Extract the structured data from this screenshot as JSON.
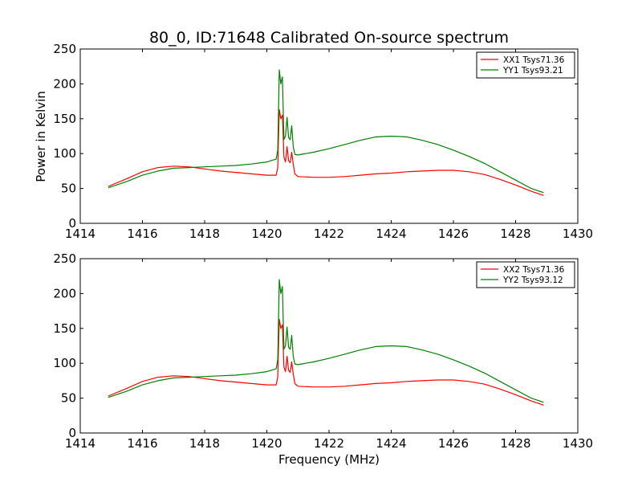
{
  "figure": {
    "title": "80_0, ID:71648 Calibrated On-source spectrum",
    "ylabel": "Power in Kelvin",
    "xlabel": "Frequency (MHz)"
  },
  "chart_data": [
    {
      "type": "line",
      "title": "80_0, ID:71648 Calibrated On-source spectrum",
      "xlabel": "",
      "ylabel": "Power in Kelvin",
      "xlim": [
        1414,
        1430
      ],
      "ylim": [
        0,
        250
      ],
      "xticks": [
        1414,
        1416,
        1418,
        1420,
        1422,
        1424,
        1426,
        1428,
        1430
      ],
      "yticks": [
        0,
        50,
        100,
        150,
        200,
        250
      ],
      "legend_position": "top-right",
      "grid": false,
      "series": [
        {
          "name": "XX1 Tsys71.36",
          "color": "#ff0000",
          "x": [
            1414.9,
            1415.5,
            1416,
            1416.5,
            1417,
            1417.5,
            1418,
            1418.5,
            1419,
            1419.5,
            1420,
            1420.3,
            1420.35,
            1420.4,
            1420.45,
            1420.5,
            1420.55,
            1420.6,
            1420.65,
            1420.7,
            1420.75,
            1420.8,
            1420.85,
            1420.9,
            1421,
            1421.5,
            1422,
            1422.5,
            1423,
            1423.5,
            1424,
            1424.5,
            1425,
            1425.5,
            1426,
            1426.5,
            1427,
            1427.5,
            1428,
            1428.5,
            1428.9
          ],
          "y": [
            53,
            64,
            74,
            80,
            82,
            81,
            78,
            75,
            73,
            71,
            69,
            69,
            80,
            163,
            150,
            155,
            95,
            88,
            110,
            90,
            87,
            102,
            85,
            71,
            67,
            66,
            66,
            67,
            69,
            71,
            72,
            74,
            75,
            76,
            76,
            74,
            70,
            63,
            55,
            46,
            40
          ]
        },
        {
          "name": "YY1 Tsys93.21",
          "color": "#008000",
          "x": [
            1414.9,
            1415.5,
            1416,
            1416.5,
            1417,
            1417.5,
            1418,
            1418.5,
            1419,
            1419.5,
            1420,
            1420.3,
            1420.35,
            1420.4,
            1420.45,
            1420.5,
            1420.55,
            1420.6,
            1420.65,
            1420.7,
            1420.75,
            1420.8,
            1420.85,
            1420.9,
            1421,
            1421.5,
            1422,
            1422.5,
            1423,
            1423.5,
            1424,
            1424.5,
            1425,
            1425.5,
            1426,
            1426.5,
            1427,
            1427.5,
            1428,
            1428.5,
            1428.9
          ],
          "y": [
            51,
            60,
            69,
            75,
            79,
            80,
            81,
            82,
            83,
            85,
            88,
            92,
            105,
            220,
            200,
            210,
            120,
            125,
            152,
            123,
            120,
            140,
            110,
            99,
            98,
            102,
            107,
            113,
            119,
            124,
            125,
            124,
            119,
            113,
            105,
            96,
            86,
            74,
            62,
            50,
            44
          ]
        }
      ]
    },
    {
      "type": "line",
      "title": "",
      "xlabel": "Frequency (MHz)",
      "ylabel": "",
      "xlim": [
        1414,
        1430
      ],
      "ylim": [
        0,
        250
      ],
      "xticks": [
        1414,
        1416,
        1418,
        1420,
        1422,
        1424,
        1426,
        1428,
        1430
      ],
      "yticks": [
        0,
        50,
        100,
        150,
        200,
        250
      ],
      "legend_position": "top-right",
      "grid": false,
      "series": [
        {
          "name": "XX2 Tsys71.36",
          "color": "#ff0000",
          "x": [
            1414.9,
            1415.5,
            1416,
            1416.5,
            1417,
            1417.5,
            1418,
            1418.5,
            1419,
            1419.5,
            1420,
            1420.3,
            1420.35,
            1420.4,
            1420.45,
            1420.5,
            1420.55,
            1420.6,
            1420.65,
            1420.7,
            1420.75,
            1420.8,
            1420.85,
            1420.9,
            1421,
            1421.5,
            1422,
            1422.5,
            1423,
            1423.5,
            1424,
            1424.5,
            1425,
            1425.5,
            1426,
            1426.5,
            1427,
            1427.5,
            1428,
            1428.5,
            1428.9
          ],
          "y": [
            53,
            64,
            74,
            80,
            82,
            81,
            78,
            75,
            73,
            71,
            69,
            69,
            80,
            163,
            150,
            155,
            95,
            88,
            110,
            90,
            87,
            102,
            85,
            71,
            67,
            66,
            66,
            67,
            69,
            71,
            72,
            74,
            75,
            76,
            76,
            74,
            70,
            63,
            55,
            46,
            40
          ]
        },
        {
          "name": "YY2 Tsys93.12",
          "color": "#008000",
          "x": [
            1414.9,
            1415.5,
            1416,
            1416.5,
            1417,
            1417.5,
            1418,
            1418.5,
            1419,
            1419.5,
            1420,
            1420.3,
            1420.35,
            1420.4,
            1420.45,
            1420.5,
            1420.55,
            1420.6,
            1420.65,
            1420.7,
            1420.75,
            1420.8,
            1420.85,
            1420.9,
            1421,
            1421.5,
            1422,
            1422.5,
            1423,
            1423.5,
            1424,
            1424.5,
            1425,
            1425.5,
            1426,
            1426.5,
            1427,
            1427.5,
            1428,
            1428.5,
            1428.9
          ],
          "y": [
            51,
            60,
            69,
            75,
            79,
            80,
            81,
            82,
            83,
            85,
            88,
            92,
            105,
            220,
            200,
            210,
            120,
            125,
            152,
            123,
            120,
            140,
            110,
            99,
            98,
            102,
            107,
            113,
            119,
            124,
            125,
            124,
            119,
            113,
            105,
            96,
            86,
            74,
            62,
            50,
            44
          ]
        }
      ]
    }
  ]
}
